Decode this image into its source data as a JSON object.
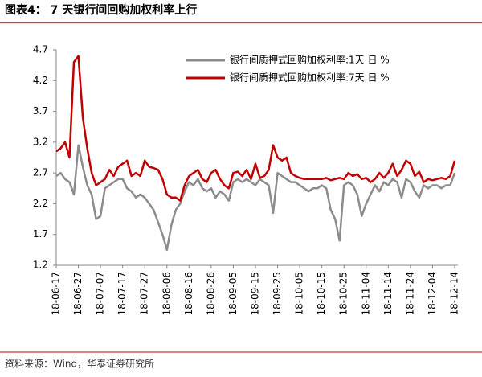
{
  "chart_data": {
    "type": "line",
    "title": "图表4： 7 天银行间回购加权利率上行",
    "source": "资料来源：Wind，华泰证券研究所",
    "categories": [
      "18-06-17",
      null,
      null,
      null,
      null,
      "18-06-27",
      null,
      null,
      null,
      null,
      "18-07-07",
      null,
      null,
      null,
      null,
      "18-07-17",
      null,
      null,
      null,
      null,
      "18-07-27",
      null,
      null,
      null,
      null,
      "18-08-06",
      null,
      null,
      null,
      null,
      "18-08-16",
      null,
      null,
      null,
      null,
      "18-08-26",
      null,
      null,
      null,
      null,
      "18-09-05",
      null,
      null,
      null,
      null,
      "18-09-15",
      null,
      null,
      null,
      null,
      "18-09-25",
      null,
      null,
      null,
      null,
      "18-10-05",
      null,
      null,
      null,
      null,
      "18-10-15",
      null,
      null,
      null,
      null,
      "18-10-25",
      null,
      null,
      null,
      null,
      "18-11-04",
      null,
      null,
      null,
      null,
      "18-11-14",
      null,
      null,
      null,
      null,
      "18-11-24",
      null,
      null,
      null,
      null,
      "18-12-04",
      null,
      null,
      null,
      null,
      "18-12-14"
    ],
    "series": [
      {
        "name": "银行间质押式回购加权利率:1天 日 %",
        "color": "#8c8c8c",
        "values": [
          2.65,
          2.7,
          2.6,
          2.55,
          2.35,
          3.15,
          2.8,
          2.5,
          2.35,
          1.95,
          2.0,
          2.45,
          2.5,
          2.55,
          2.6,
          2.6,
          2.45,
          2.4,
          2.3,
          2.35,
          2.3,
          2.2,
          2.1,
          1.9,
          1.7,
          1.45,
          1.85,
          2.1,
          2.2,
          2.4,
          2.55,
          2.5,
          2.6,
          2.45,
          2.4,
          2.45,
          2.3,
          2.4,
          2.35,
          2.25,
          2.55,
          2.6,
          2.55,
          2.6,
          2.55,
          2.5,
          2.6,
          2.55,
          2.5,
          2.05,
          2.7,
          2.65,
          2.6,
          2.55,
          2.55,
          2.5,
          2.45,
          2.4,
          2.45,
          2.45,
          2.5,
          2.45,
          2.1,
          1.95,
          1.6,
          2.5,
          2.55,
          2.5,
          2.35,
          2.0,
          2.2,
          2.35,
          2.5,
          2.4,
          2.55,
          2.5,
          2.6,
          2.55,
          2.3,
          2.6,
          2.55,
          2.4,
          2.3,
          2.5,
          2.45,
          2.5,
          2.5,
          2.45,
          2.5,
          2.5,
          2.7
        ]
      },
      {
        "name": "银行间质押式回购加权利率:7天 日 %",
        "color": "#c00000",
        "values": [
          3.05,
          3.1,
          3.2,
          2.95,
          4.5,
          4.6,
          3.6,
          3.1,
          2.7,
          2.5,
          2.55,
          2.6,
          2.75,
          2.65,
          2.8,
          2.85,
          2.9,
          2.65,
          2.7,
          2.65,
          2.9,
          2.8,
          2.78,
          2.75,
          2.6,
          2.35,
          2.3,
          2.3,
          2.25,
          2.5,
          2.65,
          2.7,
          2.75,
          2.6,
          2.55,
          2.7,
          2.75,
          2.6,
          2.5,
          2.45,
          2.7,
          2.72,
          2.65,
          2.75,
          2.6,
          2.85,
          2.62,
          2.65,
          2.75,
          3.15,
          2.95,
          2.9,
          2.95,
          2.7,
          2.65,
          2.62,
          2.6,
          2.6,
          2.6,
          2.6,
          2.6,
          2.62,
          2.58,
          2.6,
          2.62,
          2.6,
          2.7,
          2.65,
          2.68,
          2.6,
          2.62,
          2.55,
          2.6,
          2.7,
          2.62,
          2.7,
          2.85,
          2.65,
          2.75,
          2.9,
          2.85,
          2.65,
          2.72,
          2.55,
          2.6,
          2.58,
          2.6,
          2.62,
          2.6,
          2.65,
          2.9
        ]
      }
    ],
    "ylim": [
      1.2,
      4.7
    ],
    "yticks": [
      1.2,
      1.7,
      2.2,
      2.7,
      3.2,
      3.7,
      4.2,
      4.7
    ],
    "legend": "upper right"
  }
}
